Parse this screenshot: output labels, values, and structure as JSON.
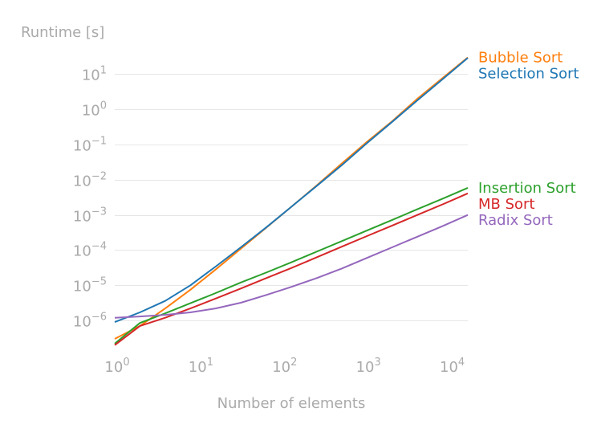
{
  "chart_data": {
    "type": "line",
    "title": "",
    "xlabel": "Number of elements",
    "ylabel": "Runtime [s]",
    "x_scale": "log",
    "y_scale": "log",
    "xlim": [
      1,
      16384
    ],
    "ylim": [
      1.6e-07,
      40
    ],
    "grid": "horizontal",
    "legend": "right, at line ends",
    "x_ticks": [
      {
        "value": 1,
        "base": "10",
        "exp": "0"
      },
      {
        "value": 10,
        "base": "10",
        "exp": "1"
      },
      {
        "value": 100,
        "base": "10",
        "exp": "2"
      },
      {
        "value": 1000,
        "base": "10",
        "exp": "3"
      },
      {
        "value": 10000,
        "base": "10",
        "exp": "4"
      }
    ],
    "y_ticks": [
      {
        "value": 1e-06,
        "base": "10",
        "exp": "−6"
      },
      {
        "value": 1e-05,
        "base": "10",
        "exp": "−5"
      },
      {
        "value": 0.0001,
        "base": "10",
        "exp": "−4"
      },
      {
        "value": 0.001,
        "base": "10",
        "exp": "−3"
      },
      {
        "value": 0.01,
        "base": "10",
        "exp": "−2"
      },
      {
        "value": 0.1,
        "base": "10",
        "exp": "−1"
      },
      {
        "value": 1,
        "base": "10",
        "exp": "0"
      },
      {
        "value": 10,
        "base": "10",
        "exp": "1"
      }
    ],
    "x": [
      1,
      2,
      4,
      8,
      16,
      32,
      64,
      128,
      256,
      512,
      1024,
      2048,
      4096,
      8192,
      16384
    ],
    "series": [
      {
        "name": "Bubble Sort",
        "color": "#ff7f0e",
        "values": [
          3e-07,
          7e-07,
          2.2e-06,
          7.5e-06,
          2.8e-05,
          0.00011,
          0.00043,
          0.0017,
          0.0068,
          0.029,
          0.12,
          0.46,
          2.0,
          7.8,
          30
        ]
      },
      {
        "name": "Selection Sort",
        "color": "#1f77b4",
        "values": [
          9e-07,
          1.7e-06,
          3.6e-06,
          1e-05,
          3.4e-05,
          0.00012,
          0.00044,
          0.0017,
          0.0066,
          0.026,
          0.11,
          0.44,
          1.8,
          7.2,
          29
        ]
      },
      {
        "name": "Insertion Sort",
        "color": "#2ca02c",
        "values": [
          2.2e-07,
          8.5e-07,
          1.6e-06,
          3.1e-06,
          6e-06,
          1.2e-05,
          2.3e-05,
          4.5e-05,
          9e-05,
          0.00018,
          0.00036,
          0.00072,
          0.00145,
          0.0029,
          0.0059
        ]
      },
      {
        "name": "MB Sort",
        "color": "#d62728",
        "values": [
          2e-07,
          7e-07,
          1.2e-06,
          2.2e-06,
          4.2e-06,
          8.1e-06,
          1.6e-05,
          3.1e-05,
          6.2e-05,
          0.000125,
          0.00025,
          0.0005,
          0.001,
          0.002,
          0.0041
        ]
      },
      {
        "name": "Radix Sort",
        "color": "#9467bd",
        "values": [
          1.2e-06,
          1.3e-06,
          1.45e-06,
          1.7e-06,
          2.2e-06,
          3.2e-06,
          5.3e-06,
          9e-06,
          1.6e-05,
          3e-05,
          6e-05,
          0.00012,
          0.00024,
          0.00048,
          0.001
        ]
      }
    ]
  }
}
